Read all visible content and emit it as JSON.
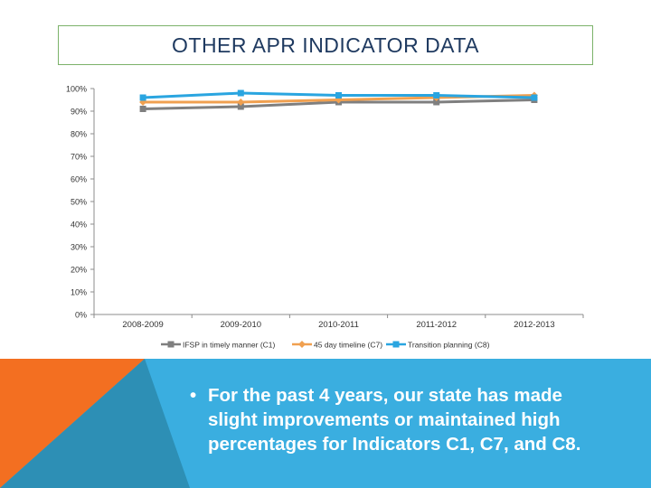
{
  "slide": {
    "title": "OTHER APR INDICATOR DATA",
    "bullet_symbol": "•",
    "bullet": "For the past 4 years, our state has made slight improvements or maintained high percentages for Indicators C1,  C7, and C8."
  },
  "colors": {
    "title": "#1f3a60",
    "title_border": "#7cb26a",
    "band_orange": "#f36f21",
    "band_teal": "#2d8fb5",
    "band_blue": "#3aaee0"
  },
  "chart_data": {
    "type": "line",
    "categories": [
      "2008-2009",
      "2009-2010",
      "2010-2011",
      "2011-2012",
      "2012-2013"
    ],
    "y_ticks": [
      "0%",
      "10%",
      "20%",
      "30%",
      "40%",
      "50%",
      "60%",
      "70%",
      "80%",
      "90%",
      "100%"
    ],
    "ylim": [
      0,
      100
    ],
    "grid": false,
    "legend_position": "bottom",
    "series": [
      {
        "name": "IFSP in timely manner (C1)",
        "color": "#7f7f7f",
        "marker": "square",
        "values": [
          91,
          92,
          94,
          94,
          95
        ]
      },
      {
        "name": "45 day timeline (C7)",
        "color": "#f0a050",
        "marker": "diamond",
        "values": [
          94,
          94,
          95,
          96,
          97
        ]
      },
      {
        "name": "Transition planning (C8)",
        "color": "#2aa5e0",
        "marker": "square",
        "values": [
          96,
          98,
          97,
          97,
          96
        ]
      }
    ]
  }
}
